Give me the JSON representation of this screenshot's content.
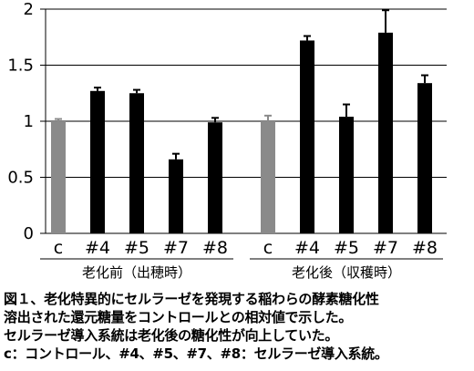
{
  "chart_data": {
    "type": "bar",
    "ylim": [
      0,
      2
    ],
    "yticks": [
      "0",
      "0.5",
      "1",
      "1.5",
      "2"
    ],
    "grid": true,
    "groups": [
      {
        "label": "老化前（出穂時）",
        "categories": [
          "c",
          "#4",
          "#5",
          "#7",
          "#8"
        ],
        "values": [
          1.0,
          1.27,
          1.25,
          0.66,
          0.99
        ],
        "errors": [
          0.02,
          0.03,
          0.03,
          0.05,
          0.04
        ]
      },
      {
        "label": "老化後（収穫時）",
        "categories": [
          "c",
          "#4",
          "#5",
          "#7",
          "#8"
        ],
        "values": [
          1.0,
          1.72,
          1.04,
          1.79,
          1.34
        ],
        "errors": [
          0.05,
          0.04,
          0.11,
          0.2,
          0.07
        ]
      }
    ],
    "colors": {
      "control": "#8a8a8a",
      "transgenic": "#000000"
    }
  },
  "caption": [
    "図１、老化特異的にセルラーゼを発現する稲わらの酵素糖化性",
    "溶出された還元糖量をコントロールとの相対値で示した。",
    "セルラーゼ導入系統は老化後の糖化性が向上していた。",
    "c：コントロール、#4、#5、#7、#8：セルラーゼ導入系統。"
  ]
}
